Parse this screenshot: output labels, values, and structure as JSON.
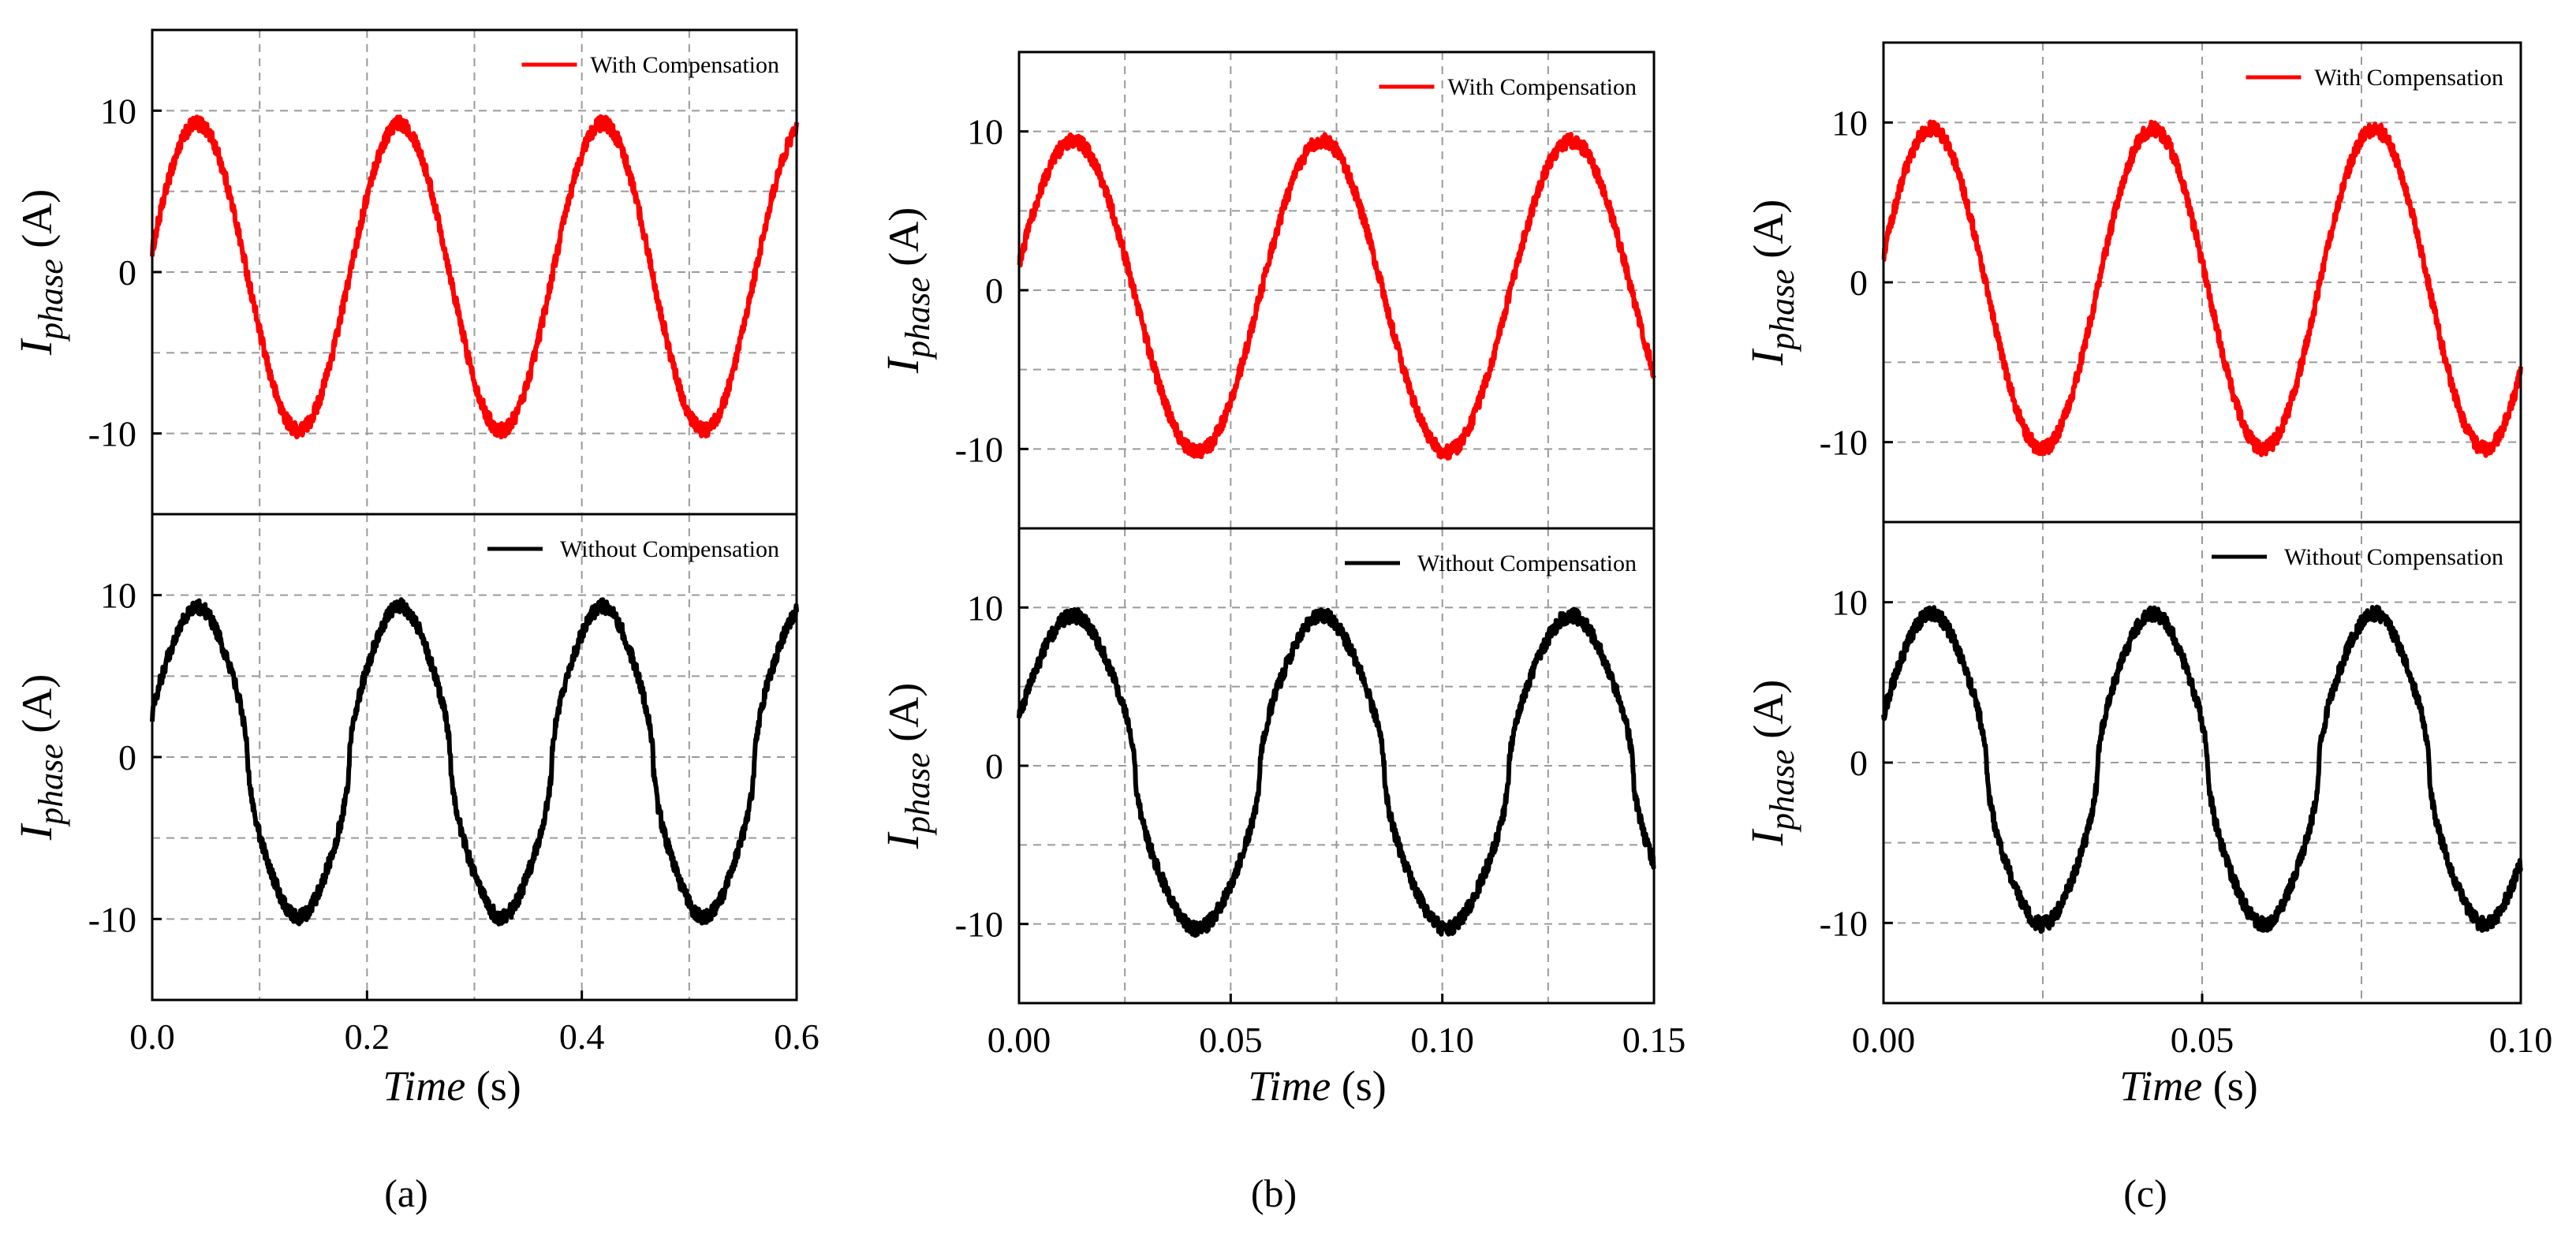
{
  "figure": {
    "panels": [
      {
        "caption": "(a)",
        "x_ticks": [
          "0.0",
          "0.2",
          "0.4",
          "0.6"
        ],
        "top_legend": "With Compensation",
        "bottom_legend": "Without Compensation"
      },
      {
        "caption": "(b)",
        "x_ticks": [
          "0.00",
          "0.05",
          "0.10",
          "0.15"
        ],
        "top_legend": "With Compensation",
        "bottom_legend": "Without Compensation"
      },
      {
        "caption": "(c)",
        "x_ticks": [
          "0.00",
          "0.05",
          "0.10"
        ],
        "top_legend": "With Compensation",
        "bottom_legend": "Without Compensation"
      }
    ],
    "y_ticks": [
      "10",
      "0",
      "-10"
    ],
    "y_label_main": "I",
    "y_label_sub": "phase",
    "y_label_unit": " (A)",
    "x_label_main": "Time",
    "x_label_unit": " (s)"
  },
  "chart_data": [
    {
      "type": "line",
      "panel": "(a)",
      "xlim": [
        0,
        0.6
      ],
      "ylim": [
        -15,
        15
      ],
      "grid": true,
      "legend_position": "top-right",
      "series": [
        {
          "name": "With Compensation",
          "color": "#ff0000",
          "subplot": "top",
          "waveform": "sinusoid",
          "amplitude": 9.5,
          "offset": -0.3,
          "frequency_hz": 5.3,
          "phase_deg": 10,
          "x_range": [
            0,
            0.6
          ]
        },
        {
          "name": "Without Compensation",
          "color": "#000000",
          "subplot": "bottom",
          "waveform": "distorted-sinusoid",
          "amplitude": 9.5,
          "offset": -0.3,
          "frequency_hz": 5.3,
          "phase_deg": 10,
          "x_range": [
            0,
            0.6
          ]
        }
      ]
    },
    {
      "type": "line",
      "panel": "(b)",
      "xlim": [
        0,
        0.15
      ],
      "ylim": [
        -15,
        15
      ],
      "grid": true,
      "legend_position": "top-right",
      "series": [
        {
          "name": "With Compensation",
          "color": "#ff0000",
          "subplot": "top",
          "waveform": "sinusoid",
          "amplitude": 9.8,
          "offset": -0.4,
          "frequency_hz": 17,
          "phase_deg": 12,
          "x_range": [
            0,
            0.15
          ]
        },
        {
          "name": "Without Compensation",
          "color": "#000000",
          "subplot": "bottom",
          "waveform": "distorted-sinusoid",
          "amplitude": 9.8,
          "offset": -0.4,
          "frequency_hz": 17,
          "phase_deg": 12,
          "x_range": [
            0,
            0.15
          ]
        }
      ]
    },
    {
      "type": "line",
      "panel": "(c)",
      "xlim": [
        0,
        0.1
      ],
      "ylim": [
        -15,
        15
      ],
      "grid": true,
      "legend_position": "top-right",
      "series": [
        {
          "name": "With Compensation",
          "color": "#ff0000",
          "subplot": "top",
          "waveform": "sinusoid",
          "amplitude": 10.0,
          "offset": -0.4,
          "frequency_hz": 28.8,
          "phase_deg": 12,
          "x_range": [
            0,
            0.1
          ]
        },
        {
          "name": "Without Compensation",
          "color": "#000000",
          "subplot": "bottom",
          "waveform": "distorted-sinusoid",
          "amplitude": 9.6,
          "offset": -0.4,
          "frequency_hz": 28.8,
          "phase_deg": 12,
          "x_range": [
            0,
            0.1
          ]
        }
      ]
    }
  ]
}
